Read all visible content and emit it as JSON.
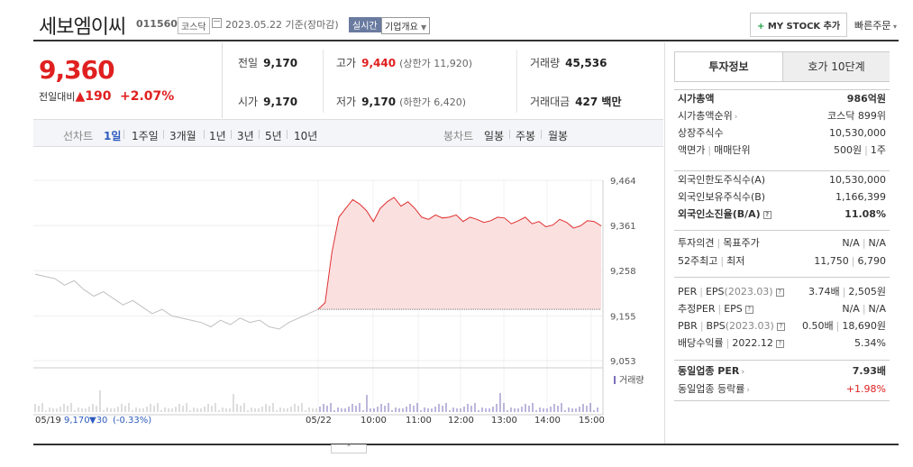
{
  "header": {
    "company_name": "세보엠이씨",
    "stock_code": "011560",
    "market_badge": "코스닥",
    "date_text": "2023.05.22 기준(장마감)",
    "realtime_badge": "실시간",
    "overview_button": "기업개요",
    "mystock_button": "MY STOCK 추가",
    "fast_order": "빠른주문"
  },
  "price": {
    "current": "9,360",
    "change_label": "전일대비",
    "change_value": "190",
    "change_pct": "+2.07%"
  },
  "stats": {
    "prev_label": "전일",
    "prev_value": "9,170",
    "high_label": "고가",
    "high_value": "9,440",
    "upper_limit": "(상한가 11,920)",
    "volume_label": "거래량",
    "volume_value": "45,536",
    "open_label": "시가",
    "open_value": "9,170",
    "low_label": "저가",
    "low_value": "9,170",
    "lower_limit": "(하한가 6,420)",
    "amount_label": "거래대금",
    "amount_value": "427 백만"
  },
  "period_bar": {
    "line_label": "선차트",
    "periods": [
      "1일",
      "1주일",
      "3개월",
      "1년",
      "3년",
      "5년",
      "10년"
    ],
    "selected": "1일",
    "candle_label": "봉차트",
    "candles": [
      "일봉",
      "주봉",
      "월봉"
    ]
  },
  "chart_data": {
    "type": "line",
    "y_ticks": [
      "9,464",
      "9,361",
      "9,258",
      "9,155",
      "9,053"
    ],
    "ylim": [
      9053,
      9464
    ],
    "x_ticks": [
      "05/22",
      "10:00",
      "11:00",
      "12:00",
      "13:00",
      "14:00",
      "15:00"
    ],
    "volume_label": "거래량",
    "prev_day": {
      "date": "05/19",
      "close": "9,170",
      "change": "▼30",
      "change_pct": "(-0.33%)"
    },
    "prev_day_series": [
      9250,
      9245,
      9240,
      9225,
      9235,
      9215,
      9200,
      9210,
      9195,
      9180,
      9190,
      9175,
      9160,
      9170,
      9155,
      9150,
      9145,
      9140,
      9130,
      9145,
      9135,
      9150,
      9140,
      9145,
      9130,
      9125,
      9140,
      9150,
      9160,
      9170
    ],
    "today_series": [
      9170,
      9185,
      9300,
      9380,
      9400,
      9420,
      9410,
      9395,
      9370,
      9400,
      9415,
      9425,
      9405,
      9415,
      9400,
      9380,
      9375,
      9385,
      9378,
      9380,
      9385,
      9370,
      9380,
      9375,
      9368,
      9372,
      9380,
      9378,
      9365,
      9372,
      9380,
      9365,
      9370,
      9358,
      9362,
      9375,
      9368,
      9355,
      9360,
      9372,
      9370,
      9360
    ],
    "baseline": 9170
  },
  "invest": {
    "tab_active": "투자정보",
    "tab_other": "호가 10단계",
    "market_cap_label": "시가총액",
    "market_cap_value": "986억원",
    "cap_rank_label": "시가총액순위",
    "cap_rank_value": "코스닥 899위",
    "shares_label": "상장주식수",
    "shares_value": "10,530,000",
    "par_label": "액면가",
    "trade_unit_label": "매매단위",
    "par_value": "500원",
    "unit_value": "1주",
    "foreign_limit_label": "외국인한도주식수(A)",
    "foreign_limit_value": "10,530,000",
    "foreign_hold_label": "외국인보유주식수(B)",
    "foreign_hold_value": "1,166,399",
    "foreign_rate_label": "외국인소진율(B/A)",
    "foreign_rate_value": "11.08%",
    "opinion_label": "투자의견",
    "target_label": "목표주가",
    "opinion_value": "N/A",
    "target_value": "N/A",
    "wk52_high_label": "52주최고",
    "wk52_low_label": "최저",
    "wk52_high_value": "11,750",
    "wk52_low_value": "6,790",
    "per_label": "PER",
    "eps_label": "EPS",
    "per_date": "(2023.03)",
    "per_value": "3.74배",
    "eps_value": "2,505원",
    "est_per_label": "추정PER",
    "est_eps_label": "EPS",
    "est_per_value": "N/A",
    "est_eps_value": "N/A",
    "pbr_label": "PBR",
    "bps_label": "BPS",
    "pbr_date": "(2023.03)",
    "pbr_value": "0.50배",
    "bps_value": "18,690원",
    "dividend_label": "배당수익률",
    "dividend_date": "2022.12",
    "dividend_value": "5.34%",
    "sector_per_label": "동일업종 PER",
    "sector_per_value": "7.93배",
    "sector_rate_label": "동일업종 등락률",
    "sector_rate_value": "+1.98%"
  },
  "colors": {
    "up": "#e02020",
    "down": "#2d5bbd",
    "line_today": "#e03030",
    "fill_today": "#fbe0e0",
    "line_prev": "#c0c0c0",
    "volume": "#7a6fb8"
  }
}
